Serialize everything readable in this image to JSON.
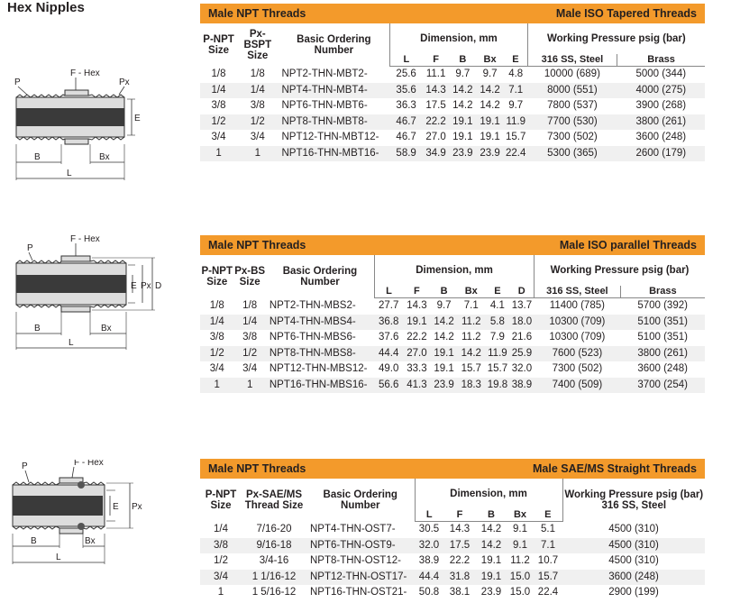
{
  "page": {
    "title": "Hex Nipples"
  },
  "labels": {
    "p": "P",
    "f_hex": "F - Hex",
    "px": "Px",
    "e": "E",
    "d": "D",
    "b": "B",
    "bx": "Bx",
    "l": "L"
  },
  "colors": {
    "accent": "#f39a2b",
    "stripe": "#f0f0f0",
    "tube": "#3a3a3a"
  },
  "sections": [
    {
      "left_title": "Male NPT Threads",
      "right_title": "Male ISO Tapered Threads",
      "col1": "P-NPT Size",
      "col2": "Px-BSPT Size",
      "col3": "Basic Ordering Number",
      "dimension_header": "Dimension, mm",
      "dim_cols": [
        "L",
        "F",
        "B",
        "Bx",
        "E"
      ],
      "wp_header": "Working Pressure psig (bar)",
      "wp_cols": [
        "316 SS, Steel",
        "Brass"
      ],
      "rows": [
        [
          "1/8",
          "1/8",
          "NPT2-THN-MBT2-",
          "25.6",
          "11.1",
          "9.7",
          "9.7",
          "4.8",
          "10000 (689)",
          "5000 (344)"
        ],
        [
          "1/4",
          "1/4",
          "NPT4-THN-MBT4-",
          "35.6",
          "14.3",
          "14.2",
          "14.2",
          "7.1",
          "8000 (551)",
          "4000 (275)"
        ],
        [
          "3/8",
          "3/8",
          "NPT6-THN-MBT6-",
          "36.3",
          "17.5",
          "14.2",
          "14.2",
          "9.7",
          "7800 (537)",
          "3900 (268)"
        ],
        [
          "1/2",
          "1/2",
          "NPT8-THN-MBT8-",
          "46.7",
          "22.2",
          "19.1",
          "19.1",
          "11.9",
          "7700 (530)",
          "3800 (261)"
        ],
        [
          "3/4",
          "3/4",
          "NPT12-THN-MBT12-",
          "46.7",
          "27.0",
          "19.1",
          "19.1",
          "15.7",
          "7300 (502)",
          "3600 (248)"
        ],
        [
          "1",
          "1",
          "NPT16-THN-MBT16-",
          "58.9",
          "34.9",
          "23.9",
          "23.9",
          "22.4",
          "5300 (365)",
          "2600 (179)"
        ]
      ]
    },
    {
      "left_title": "Male NPT Threads",
      "right_title": "Male ISO parallel Threads",
      "col1": "P-NPT Size",
      "col2": "Px-BS Size",
      "col3": "Basic Ordering Number",
      "dimension_header": "Dimension, mm",
      "dim_cols": [
        "L",
        "F",
        "B",
        "Bx",
        "E",
        "D"
      ],
      "wp_header": "Working Pressure psig (bar)",
      "wp_cols": [
        "316 SS, Steel",
        "Brass"
      ],
      "rows": [
        [
          "1/8",
          "1/8",
          "NPT2-THN-MBS2-",
          "27.7",
          "14.3",
          "9.7",
          "7.1",
          "4.1",
          "13.7",
          "11400 (785)",
          "5700 (392)"
        ],
        [
          "1/4",
          "1/4",
          "NPT4-THN-MBS4-",
          "36.8",
          "19.1",
          "14.2",
          "11.2",
          "5.8",
          "18.0",
          "10300 (709)",
          "5100 (351)"
        ],
        [
          "3/8",
          "3/8",
          "NPT6-THN-MBS6-",
          "37.6",
          "22.2",
          "14.2",
          "11.2",
          "7.9",
          "21.6",
          "10300 (709)",
          "5100 (351)"
        ],
        [
          "1/2",
          "1/2",
          "NPT8-THN-MBS8-",
          "44.4",
          "27.0",
          "19.1",
          "14.2",
          "11.9",
          "25.9",
          "7600 (523)",
          "3800 (261)"
        ],
        [
          "3/4",
          "3/4",
          "NPT12-THN-MBS12-",
          "49.0",
          "33.3",
          "19.1",
          "15.7",
          "15.7",
          "32.0",
          "7300 (502)",
          "3600 (248)"
        ],
        [
          "1",
          "1",
          "NPT16-THN-MBS16-",
          "56.6",
          "41.3",
          "23.9",
          "18.3",
          "19.8",
          "38.9",
          "7400 (509)",
          "3700 (254)"
        ]
      ]
    },
    {
      "left_title": "Male NPT Threads",
      "right_title": "Male SAE/MS Straight Threads",
      "col1": "P-NPT Size",
      "col2": "Px-SAE/MS Thread Size",
      "col3": "Basic Ordering Number",
      "dimension_header": "Dimension, mm",
      "dim_cols": [
        "L",
        "F",
        "B",
        "Bx",
        "E"
      ],
      "wp_header": "Working Pressure psig (bar) 316 SS, Steel",
      "wp_cols": [],
      "rows": [
        [
          "1/4",
          "7/16-20",
          "NPT4-THN-OST7-",
          "30.5",
          "14.3",
          "14.2",
          "9.1",
          "5.1",
          "4500 (310)"
        ],
        [
          "3/8",
          "9/16-18",
          "NPT6-THN-OST9-",
          "32.0",
          "17.5",
          "14.2",
          "9.1",
          "7.1",
          "4500 (310)"
        ],
        [
          "1/2",
          "3/4-16",
          "NPT8-THN-OST12-",
          "38.9",
          "22.2",
          "19.1",
          "11.2",
          "10.7",
          "4500 (310)"
        ],
        [
          "3/4",
          "1 1/16-12",
          "NPT12-THN-OST17-",
          "44.4",
          "31.8",
          "19.1",
          "15.0",
          "15.7",
          "3600 (248)"
        ],
        [
          "1",
          "1 5/16-12",
          "NPT16-THN-OST21-",
          "50.8",
          "38.1",
          "23.9",
          "15.0",
          "22.4",
          "2900 (199)"
        ]
      ]
    }
  ]
}
